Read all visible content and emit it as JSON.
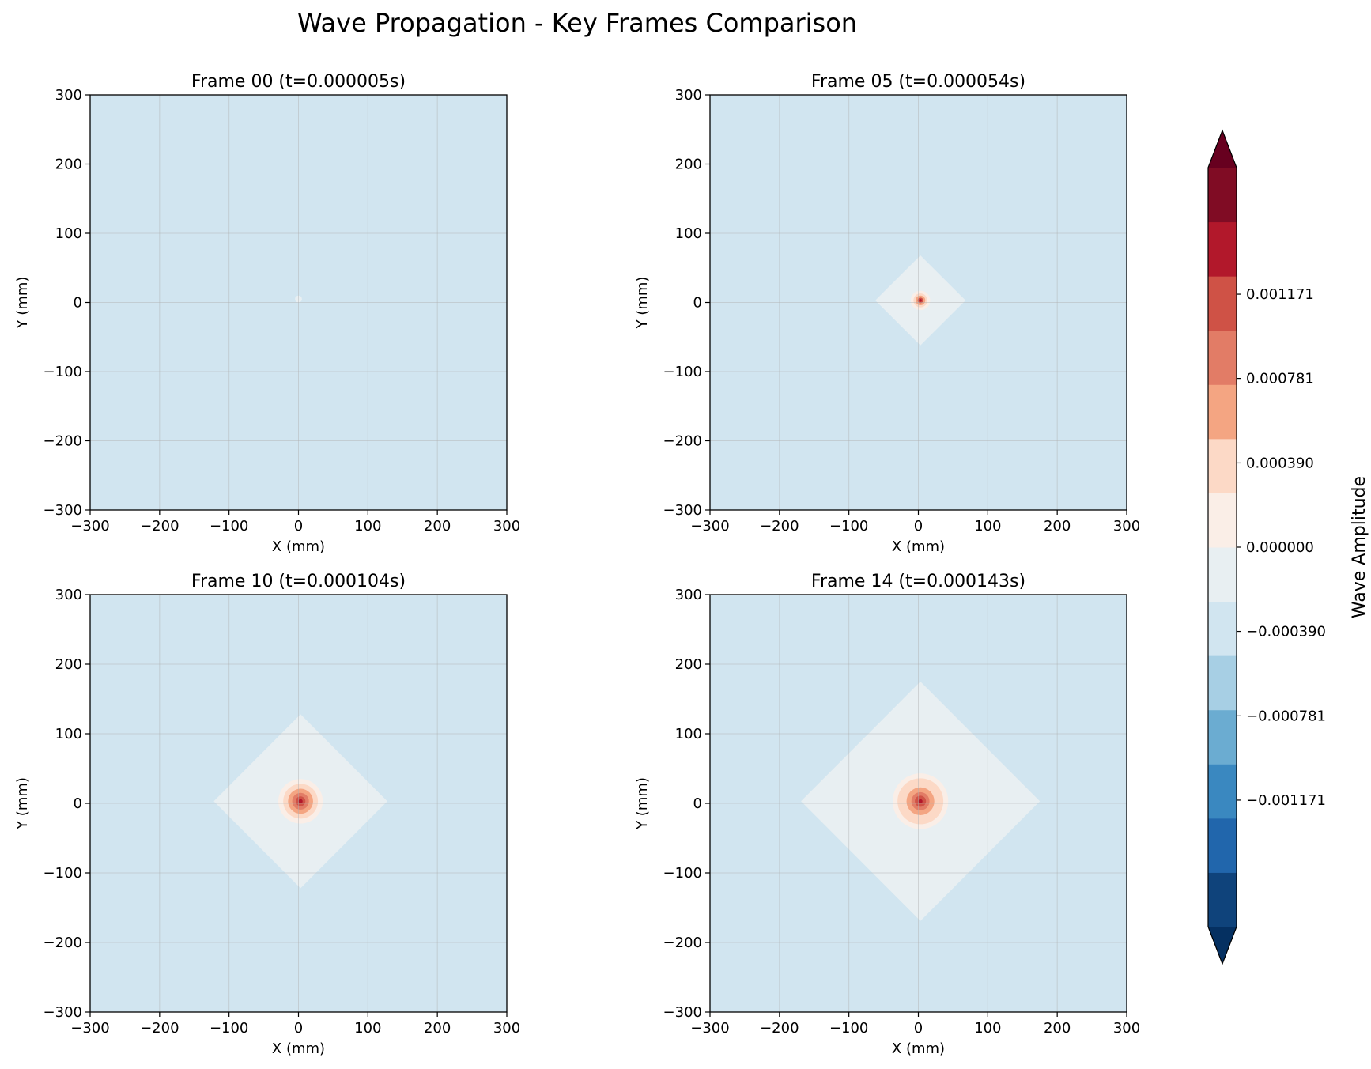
{
  "figure": {
    "title": "Wave Propagation - Key Frames Comparison"
  },
  "chart_data": [
    {
      "type": "heatmap",
      "title": "Frame 00 (t=0.000005s)",
      "xlabel": "X (mm)",
      "ylabel": "Y (mm)",
      "xlim": [
        -300,
        300
      ],
      "ylim": [
        -300,
        300
      ],
      "xticks": [
        -300,
        -200,
        -100,
        0,
        100,
        200,
        300
      ],
      "yticks": [
        -300,
        -200,
        -100,
        0,
        100,
        200,
        300
      ],
      "grid": true,
      "source": [
        0,
        5
      ],
      "contours": [
        {
          "shape": "dot",
          "r": 5,
          "level": 7
        }
      ]
    },
    {
      "type": "heatmap",
      "title": "Frame 05 (t=0.000054s)",
      "xlabel": "X (mm)",
      "ylabel": "Y (mm)",
      "xlim": [
        -300,
        300
      ],
      "ylim": [
        -300,
        300
      ],
      "xticks": [
        -300,
        -200,
        -100,
        0,
        100,
        200,
        300
      ],
      "yticks": [
        -300,
        -200,
        -100,
        0,
        100,
        200,
        300
      ],
      "grid": true,
      "source": [
        3,
        3
      ],
      "contours": [
        {
          "shape": "diamond",
          "r": 65,
          "level": 7
        },
        {
          "shape": "circle",
          "r": 14,
          "level": 8
        },
        {
          "shape": "circle",
          "r": 10,
          "level": 9
        },
        {
          "shape": "circle",
          "r": 7,
          "level": 10
        },
        {
          "shape": "circle",
          "r": 4,
          "level": 12
        },
        {
          "shape": "circle",
          "r": 2,
          "level": 13
        }
      ]
    },
    {
      "type": "heatmap",
      "title": "Frame 10 (t=0.000104s)",
      "xlabel": "X (mm)",
      "ylabel": "Y (mm)",
      "xlim": [
        -300,
        300
      ],
      "ylim": [
        -300,
        300
      ],
      "xticks": [
        -300,
        -200,
        -100,
        0,
        100,
        200,
        300
      ],
      "yticks": [
        -300,
        -200,
        -100,
        0,
        100,
        200,
        300
      ],
      "grid": true,
      "source": [
        3,
        3
      ],
      "contours": [
        {
          "shape": "diamond",
          "r": 125,
          "level": 7
        },
        {
          "shape": "circle",
          "r": 32,
          "level": 8
        },
        {
          "shape": "circle",
          "r": 25,
          "level": 9
        },
        {
          "shape": "circle",
          "r": 18,
          "level": 10
        },
        {
          "shape": "circle",
          "r": 12,
          "level": 11
        },
        {
          "shape": "circle",
          "r": 7,
          "level": 12
        },
        {
          "shape": "circle",
          "r": 3,
          "level": 13
        }
      ]
    },
    {
      "type": "heatmap",
      "title": "Frame 14 (t=0.000143s)",
      "xlabel": "X (mm)",
      "ylabel": "Y (mm)",
      "xlim": [
        -300,
        300
      ],
      "ylim": [
        -300,
        300
      ],
      "xticks": [
        -300,
        -200,
        -100,
        0,
        100,
        200,
        300
      ],
      "yticks": [
        -300,
        -200,
        -100,
        0,
        100,
        200,
        300
      ],
      "grid": true,
      "source": [
        3,
        3
      ],
      "contours": [
        {
          "shape": "diamond",
          "r": 172,
          "level": 7
        },
        {
          "shape": "circle",
          "r": 40,
          "level": 8
        },
        {
          "shape": "circle",
          "r": 33,
          "level": 9
        },
        {
          "shape": "circle",
          "r": 20,
          "level": 10
        },
        {
          "shape": "circle",
          "r": 13,
          "level": 11
        },
        {
          "shape": "circle",
          "r": 8,
          "level": 12
        },
        {
          "shape": "circle",
          "r": 3,
          "level": 13
        }
      ]
    }
  ],
  "colorbar": {
    "label": "Wave Amplitude",
    "background_level": 6,
    "min": -0.0017568,
    "max": 0.0017568,
    "extend": "both",
    "ticks": [
      -0.001171,
      -0.000781,
      -0.00039,
      0.0,
      0.00039,
      0.000781,
      0.001171
    ],
    "tick_labels": [
      "−0.001171",
      "−0.000781",
      "−0.000390",
      "0.000000",
      "0.000390",
      "0.000781",
      "0.001171"
    ],
    "levels": [
      "#053061",
      "#0f437b",
      "#2166ac",
      "#3a88c0",
      "#6bacd1",
      "#a7cfe4",
      "#d1e5f0",
      "#e8eff2",
      "#faeee7",
      "#fcd9c6",
      "#f4a582",
      "#e27c66",
      "#cf5246",
      "#b2182b",
      "#800c24",
      "#67001f"
    ]
  }
}
